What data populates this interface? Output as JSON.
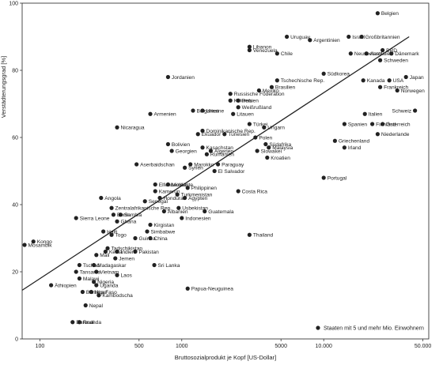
{
  "chart_data": {
    "type": "scatter",
    "xlabel": "Bruttosozialprodukt je Kopf [US-Dollar]",
    "ylabel": "Verstädterungsgrad [%]",
    "x_scale": "log",
    "xlim": [
      75,
      55000
    ],
    "ylim": [
      0,
      100
    ],
    "x_ticks": [
      100,
      500,
      1000,
      5000,
      10000,
      50000
    ],
    "x_tick_labels": [
      "100",
      "500",
      "1000",
      "5000",
      "10.000",
      "50.000"
    ],
    "y_ticks": [
      0,
      20,
      40,
      60,
      80,
      100
    ],
    "y_tick_labels": [
      "0",
      "20",
      "40",
      "60",
      "80",
      "100"
    ],
    "grid": false,
    "legend": "Staaten mit 5 und mehr Mio. Einwohnern",
    "trend_line": {
      "x": [
        75,
        40000
      ],
      "y": [
        14.5,
        90
      ]
    },
    "points": [
      {
        "label": "Belgien",
        "x": 24000,
        "y": 97
      },
      {
        "label": "Israel",
        "x": 15000,
        "y": 90
      },
      {
        "label": "Großbritannien",
        "x": 18500,
        "y": 90
      },
      {
        "label": "Argentinien",
        "x": 8000,
        "y": 89
      },
      {
        "label": "Uruguay",
        "x": 5500,
        "y": 90
      },
      {
        "label": "Libanon",
        "x": 3000,
        "y": 87
      },
      {
        "label": "Venezuela",
        "x": 3000,
        "y": 86
      },
      {
        "label": "Chile",
        "x": 4700,
        "y": 85
      },
      {
        "label": "Australien",
        "x": 20000,
        "y": 85
      },
      {
        "label": "BRD",
        "x": 26000,
        "y": 86
      },
      {
        "label": "Neuseeland",
        "x": 15500,
        "y": 85
      },
      {
        "label": "Dänemark",
        "x": 30000,
        "y": 85
      },
      {
        "label": "Schweden",
        "x": 25000,
        "y": 83
      },
      {
        "label": "Südkorea",
        "x": 10000,
        "y": 79
      },
      {
        "label": "Kanada",
        "x": 19000,
        "y": 77
      },
      {
        "label": "USA",
        "x": 29000,
        "y": 77
      },
      {
        "label": "Japan",
        "x": 38000,
        "y": 78
      },
      {
        "label": "Frankreich",
        "x": 25000,
        "y": 75
      },
      {
        "label": "Norwegen",
        "x": 33000,
        "y": 74
      },
      {
        "label": "Jordanien",
        "x": 800,
        "y": 78
      },
      {
        "label": "Tschechische Rep.",
        "x": 4700,
        "y": 77
      },
      {
        "label": "Mexiko",
        "x": 3500,
        "y": 74
      },
      {
        "label": "Russische Föderation",
        "x": 2200,
        "y": 73
      },
      {
        "label": "Brasilien",
        "x": 4300,
        "y": 75
      },
      {
        "label": "Peru",
        "x": 2500,
        "y": 71
      },
      {
        "label": "Kolumbien",
        "x": 2200,
        "y": 71
      },
      {
        "label": "Weißrußland",
        "x": 2500,
        "y": 69
      },
      {
        "label": "Bulgarien",
        "x": 1200,
        "y": 68
      },
      {
        "label": "Ukraine",
        "x": 1400,
        "y": 68
      },
      {
        "label": "Armenien",
        "x": 600,
        "y": 67
      },
      {
        "label": "Litauen",
        "x": 2300,
        "y": 67
      },
      {
        "label": "Türkei",
        "x": 3000,
        "y": 64
      },
      {
        "label": "Schweiz",
        "x": 44000,
        "y": 68
      },
      {
        "label": "Italien",
        "x": 19500,
        "y": 67
      },
      {
        "label": "Finnland",
        "x": 22000,
        "y": 64
      },
      {
        "label": "Spanien",
        "x": 14000,
        "y": 64
      },
      {
        "label": "Österreich",
        "x": 26000,
        "y": 64
      },
      {
        "label": "Nicaragua",
        "x": 350,
        "y": 63
      },
      {
        "label": "Dominikanische Rep.",
        "x": 1400,
        "y": 62
      },
      {
        "label": "Ekuador",
        "x": 1300,
        "y": 61
      },
      {
        "label": "Tunesien",
        "x": 2000,
        "y": 61
      },
      {
        "label": "Ungarn",
        "x": 3800,
        "y": 63
      },
      {
        "label": "Polen",
        "x": 3300,
        "y": 60
      },
      {
        "label": "Südafrika",
        "x": 3900,
        "y": 58
      },
      {
        "label": "Griechenland",
        "x": 12000,
        "y": 59
      },
      {
        "label": "Niederlande",
        "x": 24000,
        "y": 61
      },
      {
        "label": "Bolivien",
        "x": 800,
        "y": 58
      },
      {
        "label": "Kasachstan",
        "x": 1400,
        "y": 57
      },
      {
        "label": "Algerien",
        "x": 1600,
        "y": 56
      },
      {
        "label": "Georgien",
        "x": 850,
        "y": 56
      },
      {
        "label": "Slowakei",
        "x": 3400,
        "y": 56
      },
      {
        "label": "Malaysia",
        "x": 4100,
        "y": 57
      },
      {
        "label": "Irland",
        "x": 14000,
        "y": 57
      },
      {
        "label": "Rumänien",
        "x": 1500,
        "y": 55
      },
      {
        "label": "Kroatien",
        "x": 4000,
        "y": 54
      },
      {
        "label": "Aserbaidschan",
        "x": 480,
        "y": 52
      },
      {
        "label": "Marokko",
        "x": 1150,
        "y": 52
      },
      {
        "label": "Paraguay",
        "x": 1800,
        "y": 52
      },
      {
        "label": "Syrien",
        "x": 1050,
        "y": 51
      },
      {
        "label": "El Salvador",
        "x": 1700,
        "y": 50
      },
      {
        "label": "Elfenbeinküste",
        "x": 650,
        "y": 46
      },
      {
        "label": "Moldau",
        "x": 800,
        "y": 46
      },
      {
        "label": "Philippinen",
        "x": 1100,
        "y": 45
      },
      {
        "label": "Kamerun",
        "x": 650,
        "y": 44
      },
      {
        "label": "Turkmenistan",
        "x": 930,
        "y": 43
      },
      {
        "label": "Ägypten",
        "x": 1050,
        "y": 42
      },
      {
        "label": "Honduras",
        "x": 700,
        "y": 42
      },
      {
        "label": "Costa Rica",
        "x": 2500,
        "y": 44
      },
      {
        "label": "Senegal",
        "x": 550,
        "y": 41
      },
      {
        "label": "Angola",
        "x": 270,
        "y": 42
      },
      {
        "label": "Portugal",
        "x": 10000,
        "y": 48
      },
      {
        "label": "Zentralafrikanische Rep.",
        "x": 320,
        "y": 39
      },
      {
        "label": "Sambia",
        "x": 370,
        "y": 37
      },
      {
        "label": "Albanien",
        "x": 750,
        "y": 38
      },
      {
        "label": "Usbekistan",
        "x": 950,
        "y": 39
      },
      {
        "label": "Guatemala",
        "x": 1450,
        "y": 38
      },
      {
        "label": "Indonesien",
        "x": 1000,
        "y": 36
      },
      {
        "label": "Sierra Leone",
        "x": 180,
        "y": 36
      },
      {
        "label": "Benin",
        "x": 330,
        "y": 37
      },
      {
        "label": "Ghana",
        "x": 350,
        "y": 35
      },
      {
        "label": "Kirgistan",
        "x": 600,
        "y": 34
      },
      {
        "label": "Haiti",
        "x": 280,
        "y": 32
      },
      {
        "label": "Simbabwe",
        "x": 570,
        "y": 32
      },
      {
        "label": "Togo",
        "x": 320,
        "y": 31
      },
      {
        "label": "Thailand",
        "x": 3000,
        "y": 31
      },
      {
        "label": "Kongo",
        "x": 90,
        "y": 29
      },
      {
        "label": "Guinea",
        "x": 470,
        "y": 30
      },
      {
        "label": "China",
        "x": 600,
        "y": 30
      },
      {
        "label": "Tadschikistan",
        "x": 300,
        "y": 27
      },
      {
        "label": "Pakistan",
        "x": 470,
        "y": 26
      },
      {
        "label": "Mosambik",
        "x": 78,
        "y": 28
      },
      {
        "label": "Kenia",
        "x": 290,
        "y": 26
      },
      {
        "label": "Indien",
        "x": 350,
        "y": 26
      },
      {
        "label": "Mali",
        "x": 250,
        "y": 25
      },
      {
        "label": "Jemen",
        "x": 340,
        "y": 24
      },
      {
        "label": "Tschad",
        "x": 190,
        "y": 22
      },
      {
        "label": "Madagaskar",
        "x": 240,
        "y": 22
      },
      {
        "label": "Sri Lanka",
        "x": 640,
        "y": 22
      },
      {
        "label": "Tansania",
        "x": 180,
        "y": 20
      },
      {
        "label": "Vietnam",
        "x": 250,
        "y": 20
      },
      {
        "label": "Laos",
        "x": 350,
        "y": 19
      },
      {
        "label": "Malawi",
        "x": 190,
        "y": 18
      },
      {
        "label": "Nigeria",
        "x": 240,
        "y": 17
      },
      {
        "label": "Uganda",
        "x": 250,
        "y": 16
      },
      {
        "label": "Äthiopien",
        "x": 120,
        "y": 16
      },
      {
        "label": "Burkina Faso",
        "x": 200,
        "y": 14
      },
      {
        "label": "Niger",
        "x": 230,
        "y": 14
      },
      {
        "label": "Kambodscha",
        "x": 260,
        "y": 13
      },
      {
        "label": "Papua-Neuguinea",
        "x": 1100,
        "y": 15
      },
      {
        "label": "Nepal",
        "x": 210,
        "y": 10
      },
      {
        "label": "Burundi",
        "x": 170,
        "y": 5
      },
      {
        "label": "Ruanda",
        "x": 190,
        "y": 5
      }
    ]
  }
}
